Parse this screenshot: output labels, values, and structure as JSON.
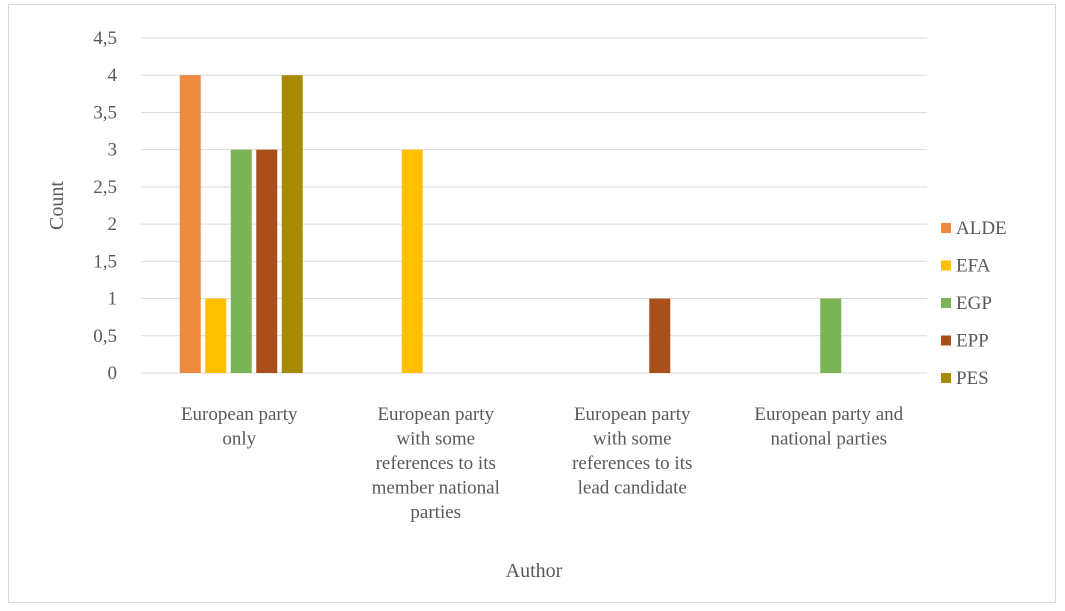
{
  "chart_data": {
    "type": "bar",
    "title": "",
    "xlabel": "Author",
    "ylabel": "Count",
    "ylim": [
      0,
      4.5
    ],
    "y_ticks": [
      "0",
      "0,5",
      "1",
      "1,5",
      "2",
      "2,5",
      "3",
      "3,5",
      "4",
      "4,5"
    ],
    "grid": true,
    "legend_position": "right",
    "categories": [
      [
        "European party",
        "only"
      ],
      [
        "European party",
        "with some",
        "references to its",
        "member national",
        "parties"
      ],
      [
        "European party",
        "with some",
        "references to its",
        "lead candidate"
      ],
      [
        "European party and",
        "national parties"
      ]
    ],
    "series": [
      {
        "name": "ALDE",
        "color": "#ed8a3f",
        "values": [
          4,
          0,
          0,
          0
        ]
      },
      {
        "name": "EFA",
        "color": "#ffc000",
        "values": [
          1,
          3,
          0,
          0
        ]
      },
      {
        "name": "EGP",
        "color": "#7cb555",
        "values": [
          3,
          0,
          0,
          1
        ]
      },
      {
        "name": "EPP",
        "color": "#a94f1b",
        "values": [
          3,
          0,
          1,
          0
        ]
      },
      {
        "name": "PES",
        "color": "#a88a00",
        "values": [
          4,
          0,
          0,
          0
        ]
      }
    ]
  }
}
